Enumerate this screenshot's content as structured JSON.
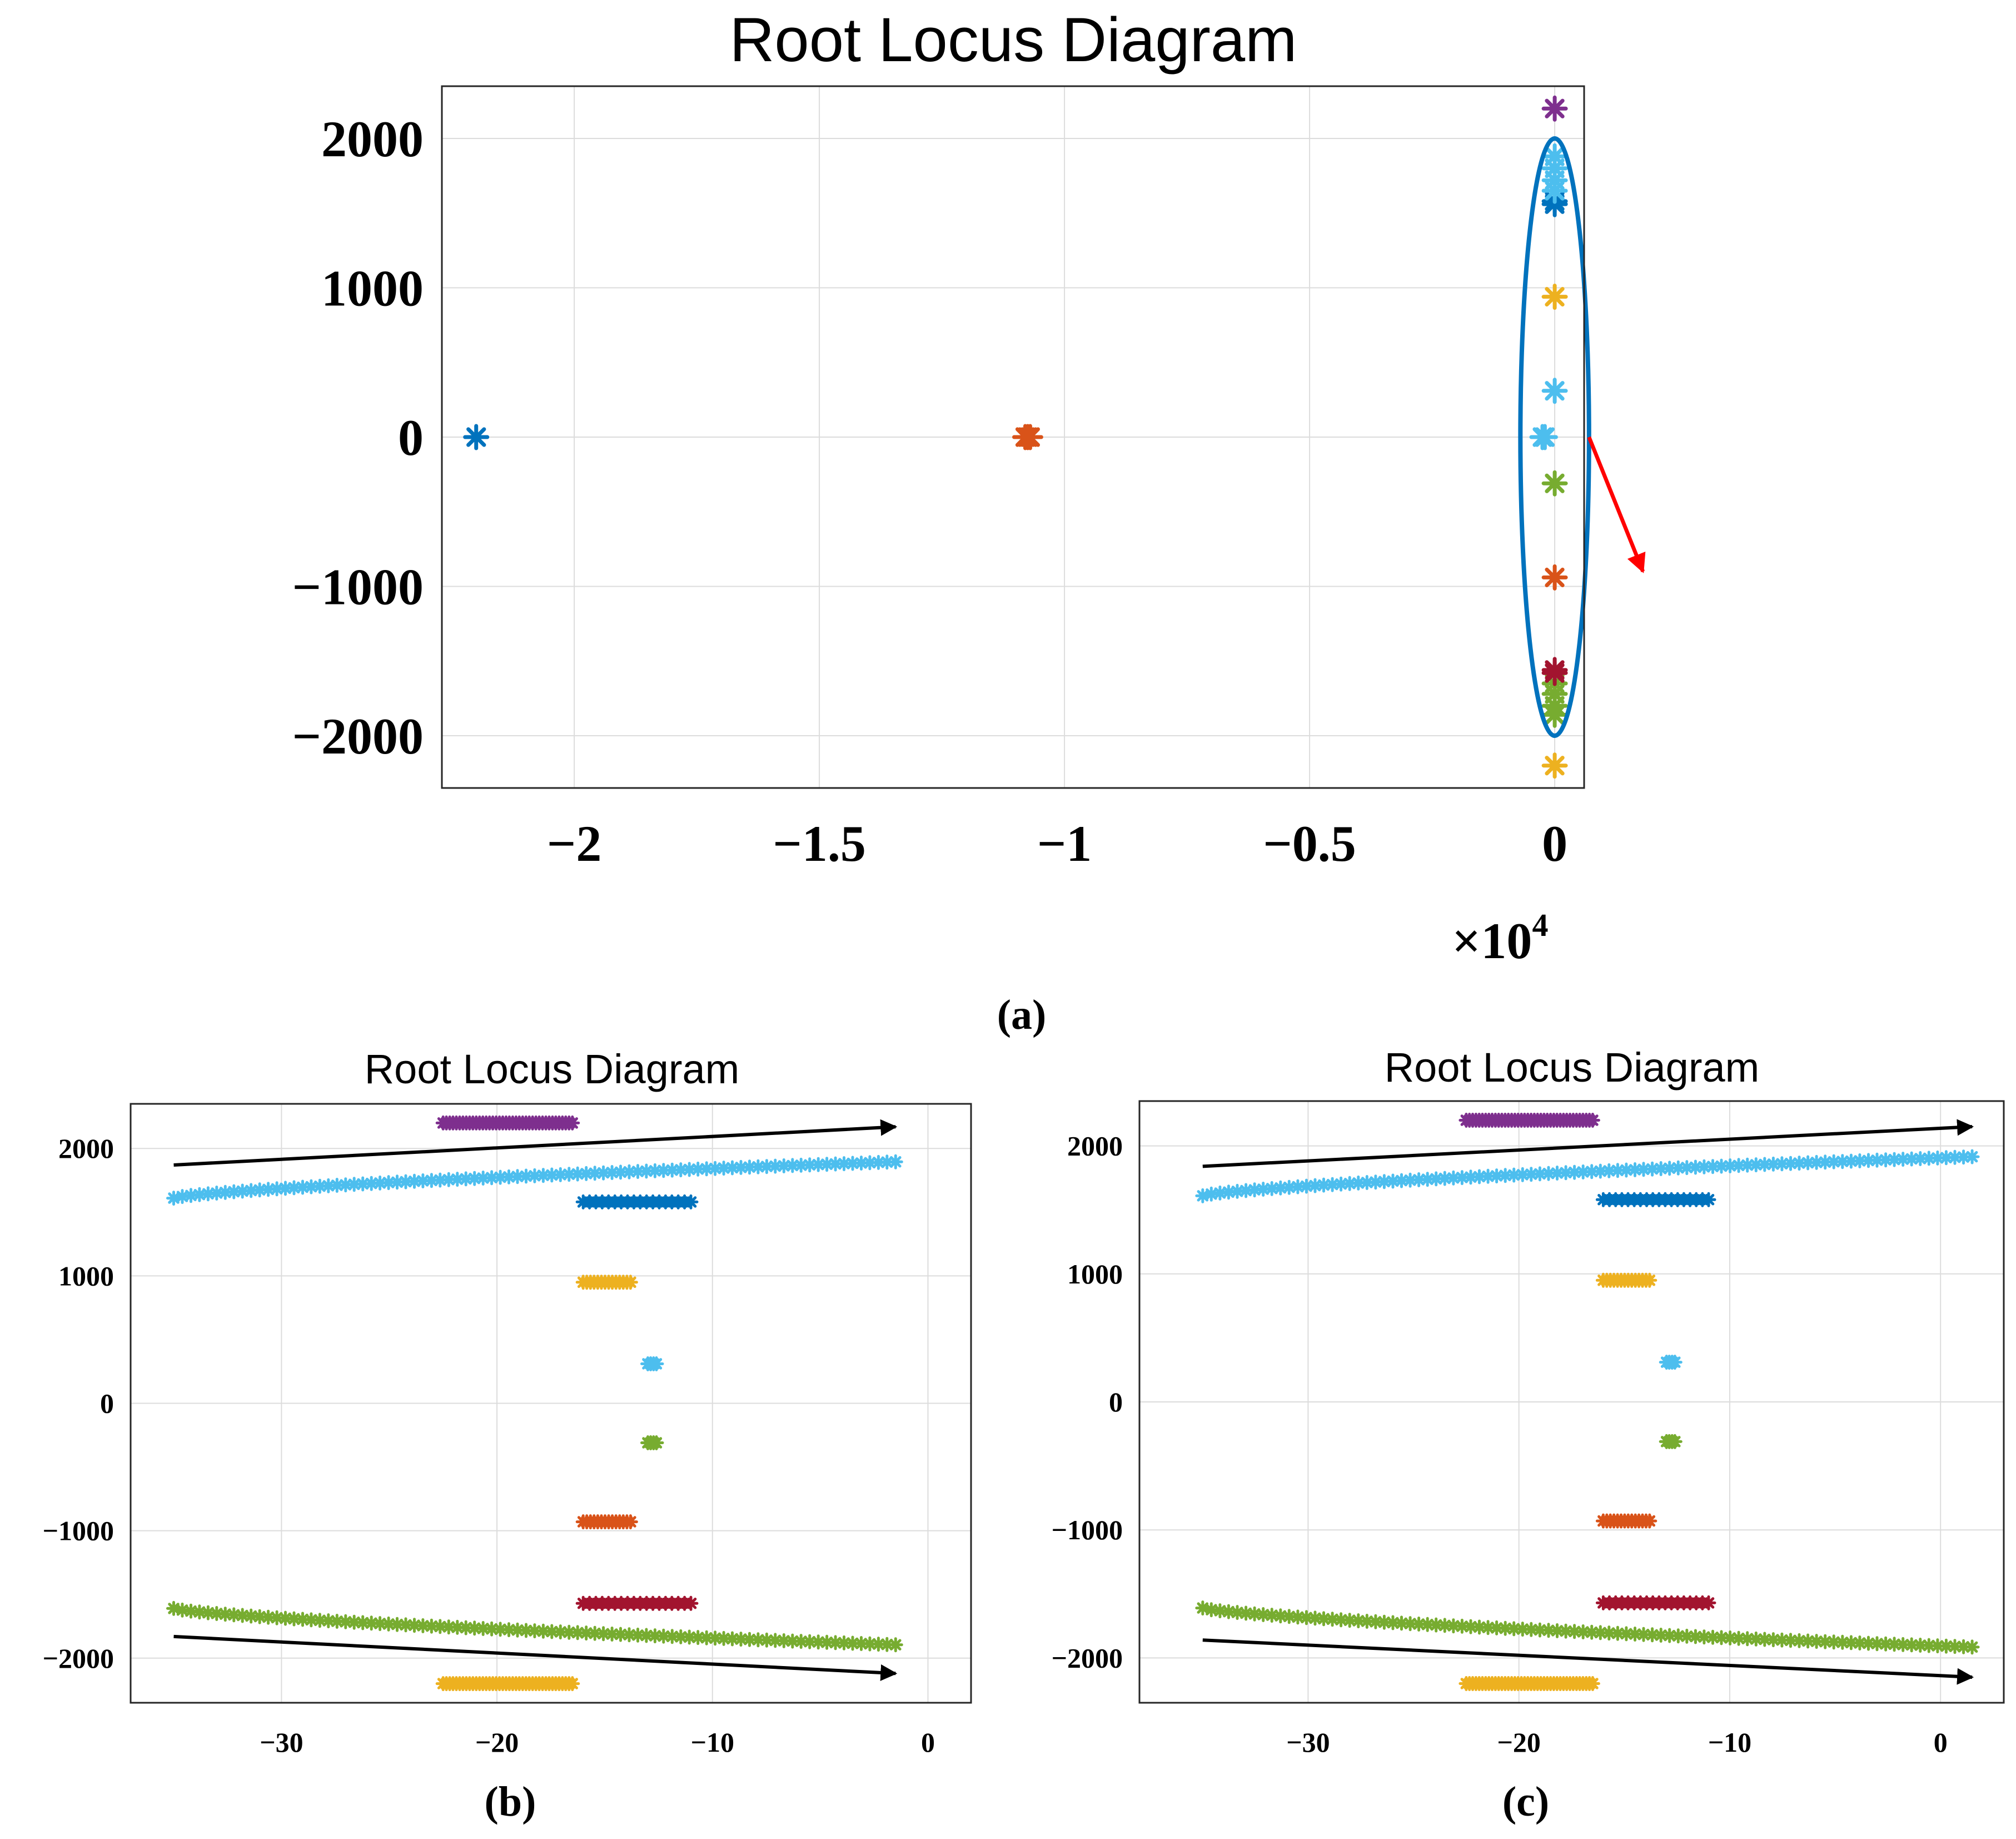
{
  "colors": {
    "blue": "#0072BD",
    "orange": "#D95319",
    "yellow": "#EDB120",
    "purple": "#7E2F8E",
    "green": "#77AC30",
    "lightblue": "#4DBEEE",
    "darkred": "#A2142F",
    "ellipse": "#0072BD",
    "red_arrow": "#FF0000",
    "black_arrow": "#000000"
  },
  "chart_data": [
    {
      "id": "a",
      "panel_label": "(a)",
      "type": "scatter",
      "title": "Root Locus Diagram",
      "xlim": [
        -22700,
        600
      ],
      "ylim": [
        -2350,
        2350
      ],
      "xticks": [
        -20000,
        -15000,
        -10000,
        -5000,
        0
      ],
      "xtick_labels": [
        "−2",
        "−1.5",
        "−1",
        "−0.5",
        "0"
      ],
      "yticks": [
        -2000,
        -1000,
        0,
        1000,
        2000
      ],
      "ytick_labels": [
        "−2000",
        "−1000",
        "0",
        "1000",
        "2000"
      ],
      "x_exponent_label": "×10",
      "x_exponent_power": "4",
      "grid": true,
      "series": [
        {
          "name": "blue",
          "color": "#0072BD",
          "points": [
            [
              -22000,
              0
            ],
            [
              0,
              1580
            ],
            [
              0,
              1560
            ]
          ]
        },
        {
          "name": "orange",
          "color": "#D95319",
          "points": [
            [
              -10800,
              0
            ],
            [
              -10750,
              0
            ],
            [
              -10700,
              0
            ],
            [
              0,
              -940
            ]
          ]
        },
        {
          "name": "purple",
          "color": "#7E2F8E",
          "points": [
            [
              0,
              2200
            ]
          ]
        },
        {
          "name": "lightblue",
          "color": "#4DBEEE",
          "points": [
            [
              0,
              1880
            ],
            [
              0,
              1800
            ],
            [
              0,
              1720
            ],
            [
              0,
              1650
            ],
            [
              0,
              310
            ],
            [
              -250,
              0
            ],
            [
              -200,
              0
            ]
          ]
        },
        {
          "name": "yellow",
          "color": "#EDB120",
          "points": [
            [
              0,
              940
            ],
            [
              0,
              -2200
            ]
          ]
        },
        {
          "name": "green",
          "color": "#77AC30",
          "points": [
            [
              0,
              -310
            ],
            [
              0,
              -1650
            ],
            [
              0,
              -1720
            ],
            [
              0,
              -1800
            ],
            [
              0,
              -1860
            ]
          ]
        },
        {
          "name": "darkred",
          "color": "#A2142F",
          "points": [
            [
              0,
              -1580
            ],
            [
              0,
              -1560
            ]
          ]
        }
      ],
      "annotations": {
        "ellipse": {
          "cx": 0,
          "cy": 0,
          "rx": 700,
          "ry": 2000
        },
        "red_arrow": {
          "from": [
            700,
            0
          ],
          "to": [
            1800,
            -900
          ]
        }
      }
    },
    {
      "id": "b",
      "panel_label": "(b)",
      "type": "scatter",
      "title": "Root Locus Diagram",
      "xlim": [
        -37,
        2
      ],
      "ylim": [
        -2350,
        2350
      ],
      "xticks": [
        -30,
        -20,
        -10,
        0
      ],
      "xtick_labels": [
        "−30",
        "−20",
        "−10",
        "0"
      ],
      "yticks": [
        -2000,
        -1000,
        0,
        1000,
        2000
      ],
      "ytick_labels": [
        "−2000",
        "−1000",
        "0",
        "1000",
        "2000"
      ],
      "grid": true,
      "series": [
        {
          "name": "purple",
          "color": "#7E2F8E",
          "range": {
            "x": [
              -22.5,
              -16.5
            ],
            "y": 2200,
            "n": 40
          }
        },
        {
          "name": "lightblue",
          "color": "#4DBEEE",
          "curve": {
            "x": [
              -35,
              -1.5
            ],
            "y": [
              1610,
              1895
            ],
            "n": 85
          }
        },
        {
          "name": "blue",
          "color": "#0072BD",
          "range": {
            "x": [
              -16,
              -11
            ],
            "y": 1580,
            "n": 18
          }
        },
        {
          "name": "yellow",
          "color": "#EDB120",
          "range": {
            "x": [
              -16,
              -13.8
            ],
            "y": 950,
            "n": 14
          }
        },
        {
          "name": "lightblue-small",
          "color": "#4DBEEE",
          "range": {
            "x": [
              -13,
              -12.6
            ],
            "y": 310,
            "n": 4
          }
        },
        {
          "name": "green-small",
          "color": "#77AC30",
          "range": {
            "x": [
              -13,
              -12.6
            ],
            "y": -310,
            "n": 4
          }
        },
        {
          "name": "orange",
          "color": "#D95319",
          "range": {
            "x": [
              -16,
              -13.8
            ],
            "y": -930,
            "n": 14
          }
        },
        {
          "name": "darkred",
          "color": "#A2142F",
          "range": {
            "x": [
              -16,
              -11
            ],
            "y": -1570,
            "n": 18
          }
        },
        {
          "name": "green",
          "color": "#77AC30",
          "curve": {
            "x": [
              -35,
              -1.5
            ],
            "y": [
              -1610,
              -1895
            ],
            "n": 85
          }
        },
        {
          "name": "yellow-bottom",
          "color": "#EDB120",
          "range": {
            "x": [
              -22.5,
              -16.5
            ],
            "y": -2200,
            "n": 40
          }
        }
      ],
      "annotations": {
        "arrows": [
          {
            "from": [
              -35,
              1870
            ],
            "to": [
              -1.5,
              2170
            ]
          },
          {
            "from": [
              -35,
              -1830
            ],
            "to": [
              -1.5,
              -2120
            ]
          }
        ]
      }
    },
    {
      "id": "c",
      "panel_label": "(c)",
      "type": "scatter",
      "title": "Root Locus Diagram",
      "xlim": [
        -38,
        3
      ],
      "ylim": [
        -2350,
        2350
      ],
      "xticks": [
        -30,
        -20,
        -10,
        0
      ],
      "xtick_labels": [
        "−30",
        "−20",
        "−10",
        "0"
      ],
      "yticks": [
        -2000,
        -1000,
        0,
        1000,
        2000
      ],
      "ytick_labels": [
        "−2000",
        "−1000",
        "0",
        "1000",
        "2000"
      ],
      "grid": true,
      "series": [
        {
          "name": "purple",
          "color": "#7E2F8E",
          "range": {
            "x": [
              -22.5,
              -16.5
            ],
            "y": 2200,
            "n": 40
          }
        },
        {
          "name": "lightblue",
          "color": "#4DBEEE",
          "curve": {
            "x": [
              -35,
              1.5
            ],
            "y": [
              1610,
              1915
            ],
            "n": 90
          }
        },
        {
          "name": "blue",
          "color": "#0072BD",
          "range": {
            "x": [
              -16,
              -11
            ],
            "y": 1580,
            "n": 18
          }
        },
        {
          "name": "yellow",
          "color": "#EDB120",
          "range": {
            "x": [
              -16,
              -13.8
            ],
            "y": 950,
            "n": 14
          }
        },
        {
          "name": "lightblue-small",
          "color": "#4DBEEE",
          "range": {
            "x": [
              -13,
              -12.6
            ],
            "y": 310,
            "n": 4
          }
        },
        {
          "name": "green-small",
          "color": "#77AC30",
          "range": {
            "x": [
              -13,
              -12.6
            ],
            "y": -310,
            "n": 4
          }
        },
        {
          "name": "orange",
          "color": "#D95319",
          "range": {
            "x": [
              -16,
              -13.8
            ],
            "y": -930,
            "n": 14
          }
        },
        {
          "name": "darkred",
          "color": "#A2142F",
          "range": {
            "x": [
              -16,
              -11
            ],
            "y": -1570,
            "n": 18
          }
        },
        {
          "name": "green",
          "color": "#77AC30",
          "curve": {
            "x": [
              -35,
              1.5
            ],
            "y": [
              -1610,
              -1915
            ],
            "n": 90
          }
        },
        {
          "name": "yellow-bottom",
          "color": "#EDB120",
          "range": {
            "x": [
              -22.5,
              -16.5
            ],
            "y": -2200,
            "n": 40
          }
        }
      ],
      "annotations": {
        "arrows": [
          {
            "from": [
              -35,
              1840
            ],
            "to": [
              1.5,
              2150
            ]
          },
          {
            "from": [
              -35,
              -1860
            ],
            "to": [
              1.5,
              -2150
            ]
          }
        ]
      }
    }
  ]
}
